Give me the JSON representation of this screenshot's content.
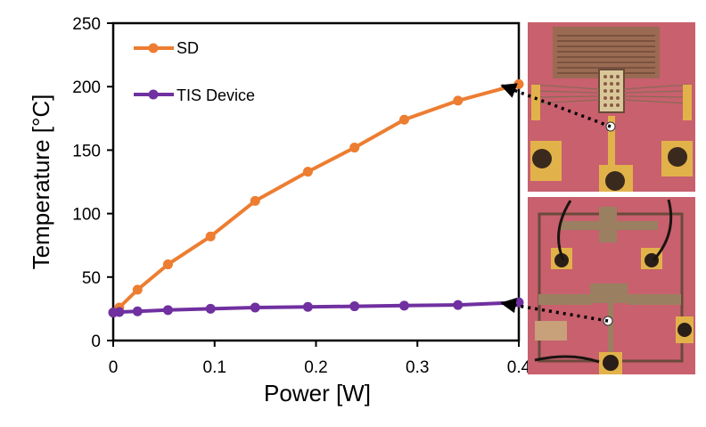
{
  "chart_data": {
    "type": "line",
    "title": "",
    "xlabel": "Power [W]",
    "ylabel": "Temperature [°C]",
    "xlim": [
      0,
      0.4
    ],
    "ylim": [
      0,
      250
    ],
    "xticks": [
      0,
      0.1,
      0.2,
      0.3,
      0.4
    ],
    "yticks": [
      0,
      50,
      100,
      150,
      200,
      250
    ],
    "xtick_labels": [
      "0",
      "0.1",
      "0.2",
      "0.3",
      "0.4"
    ],
    "ytick_labels": [
      "0",
      "50",
      "100",
      "150",
      "200",
      "250"
    ],
    "grid": false,
    "legend_position": "top-left",
    "series": [
      {
        "name": "SD",
        "color": "#ED7D31",
        "x": [
          0,
          0.006,
          0.024,
          0.054,
          0.096,
          0.14,
          0.192,
          0.238,
          0.287,
          0.34,
          0.4
        ],
        "y": [
          22,
          26,
          40,
          60,
          82,
          110,
          133,
          152,
          174,
          189,
          202
        ]
      },
      {
        "name": "TIS Device",
        "color": "#7030A0",
        "x": [
          0,
          0.006,
          0.024,
          0.054,
          0.096,
          0.14,
          0.192,
          0.238,
          0.287,
          0.34,
          0.4
        ],
        "y": [
          22,
          22.5,
          23,
          24,
          25,
          26,
          26.5,
          27,
          27.5,
          28,
          30
        ]
      }
    ]
  },
  "colors": {
    "photo_background": "#C8606E",
    "photo_pad_gold": "#E2B24A",
    "pointer": "#000000"
  }
}
